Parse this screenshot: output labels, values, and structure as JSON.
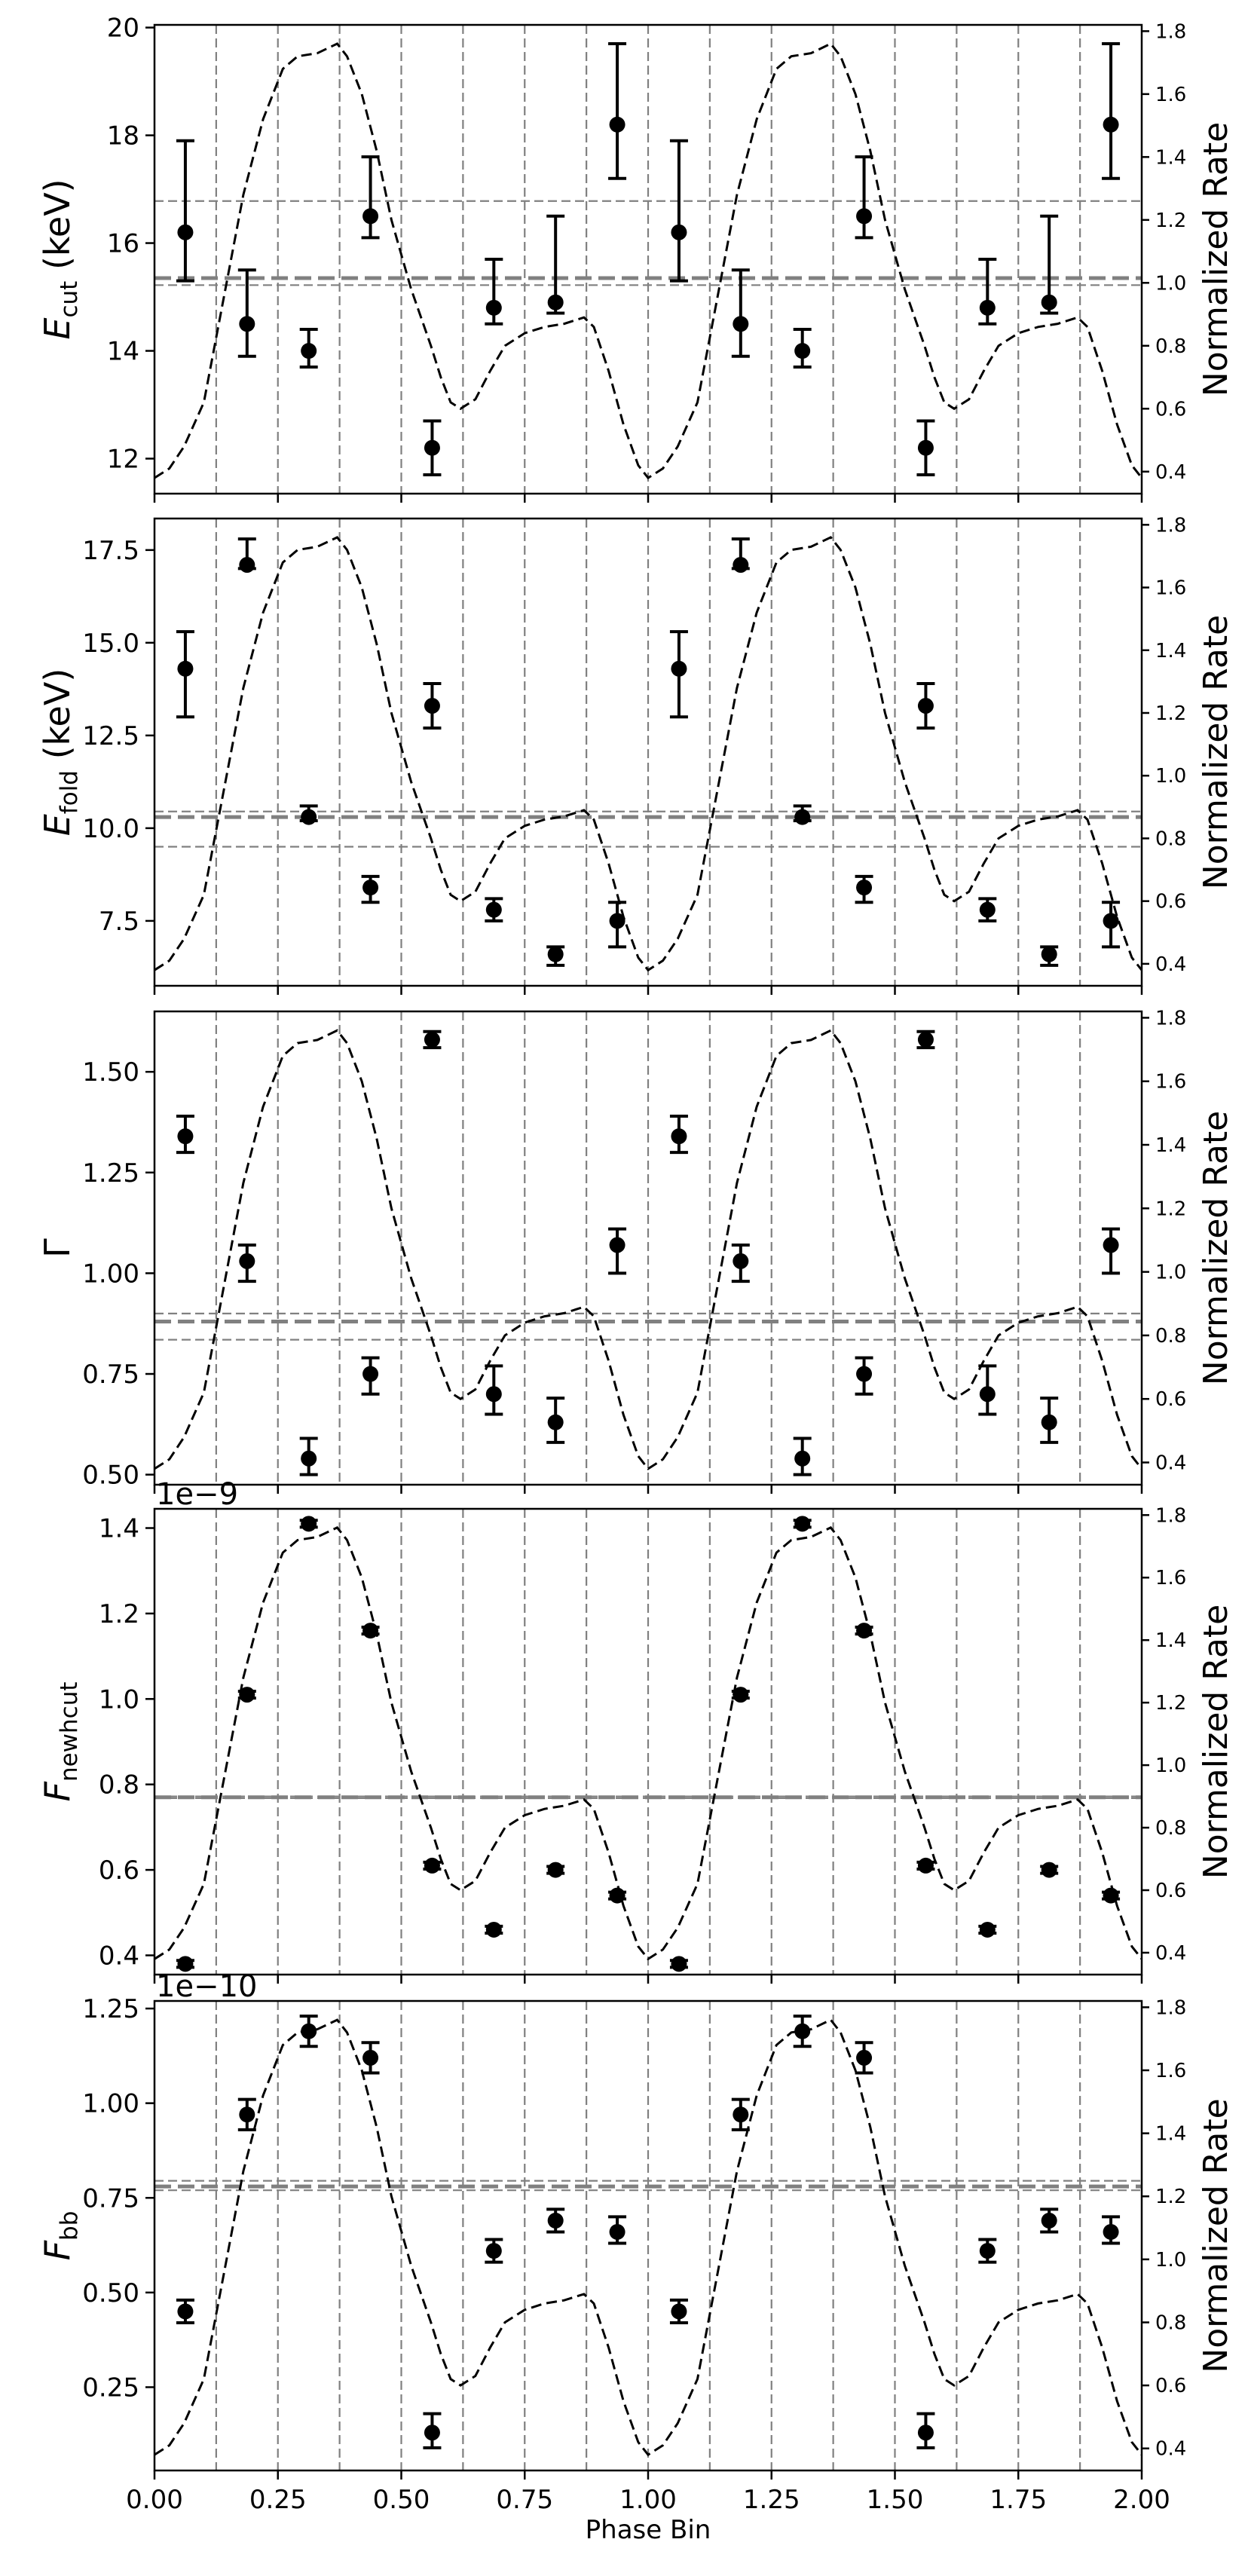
{
  "chart_data": {
    "type": "scatter",
    "xlabel": "Phase Bin",
    "xlim": [
      0,
      2
    ],
    "x_ticks": [
      "0.00",
      "0.25",
      "0.50",
      "0.75",
      "1.00",
      "1.25",
      "1.50",
      "1.75",
      "2.00"
    ],
    "right_ylabel": "Normalized Rate",
    "right_ylim": [
      0.33,
      1.82
    ],
    "right_ticks": [
      "0.4",
      "0.6",
      "0.8",
      "1.0",
      "1.2",
      "1.4",
      "1.6",
      "1.8"
    ],
    "phase_bins": [
      0.0625,
      0.1875,
      0.3125,
      0.4375,
      0.5625,
      0.6875,
      0.8125,
      0.9375,
      1.0625,
      1.1875,
      1.3125,
      1.4375,
      1.5625,
      1.6875,
      1.8125,
      1.9375
    ],
    "vertical_lines": [
      0.125,
      0.25,
      0.375,
      0.5,
      0.625,
      0.75,
      0.875,
      1.0,
      1.125,
      1.25,
      1.375,
      1.5,
      1.625,
      1.75,
      1.875
    ],
    "pulse_profile": {
      "x": [
        0.0,
        0.03,
        0.06,
        0.1,
        0.14,
        0.18,
        0.22,
        0.26,
        0.29,
        0.33,
        0.37,
        0.39,
        0.42,
        0.45,
        0.48,
        0.52,
        0.56,
        0.58,
        0.6,
        0.62,
        0.65,
        0.68,
        0.71,
        0.75,
        0.79,
        0.83,
        0.87,
        0.89,
        0.92,
        0.95,
        0.98,
        1.0,
        1.03,
        1.06,
        1.1,
        1.14,
        1.18,
        1.22,
        1.26,
        1.29,
        1.33,
        1.37,
        1.39,
        1.42,
        1.45,
        1.48,
        1.52,
        1.56,
        1.58,
        1.6,
        1.62,
        1.65,
        1.68,
        1.71,
        1.75,
        1.79,
        1.83,
        1.87,
        1.89,
        1.92,
        1.95,
        1.98,
        2.0
      ],
      "y": [
        0.38,
        0.41,
        0.48,
        0.62,
        0.95,
        1.28,
        1.52,
        1.68,
        1.72,
        1.73,
        1.76,
        1.72,
        1.6,
        1.42,
        1.2,
        0.98,
        0.8,
        0.7,
        0.62,
        0.6,
        0.63,
        0.72,
        0.8,
        0.84,
        0.86,
        0.87,
        0.89,
        0.86,
        0.72,
        0.55,
        0.42,
        0.38,
        0.41,
        0.48,
        0.62,
        0.95,
        1.28,
        1.52,
        1.68,
        1.72,
        1.73,
        1.76,
        1.72,
        1.6,
        1.42,
        1.2,
        0.98,
        0.8,
        0.7,
        0.62,
        0.6,
        0.63,
        0.72,
        0.8,
        0.84,
        0.86,
        0.87,
        0.89,
        0.86,
        0.72,
        0.55,
        0.42,
        0.38
      ]
    },
    "panels": [
      {
        "id": "ecut",
        "ylabel_main": "E",
        "ylabel_sub": "cut",
        "ylabel_unit": " (keV)",
        "ylim": [
          11.35,
          20.05
        ],
        "ticks": [
          12,
          14,
          16,
          18,
          20
        ],
        "tick_labels": [
          "12",
          "14",
          "16",
          "18",
          "20"
        ],
        "offset_text": "",
        "values": [
          16.2,
          14.5,
          14.0,
          16.5,
          12.2,
          14.8,
          14.9,
          18.2,
          16.2,
          14.5,
          14.0,
          16.5,
          12.2,
          14.8,
          14.9,
          18.2
        ],
        "err_up": [
          1.7,
          1.0,
          0.4,
          1.1,
          0.5,
          0.9,
          1.6,
          1.5,
          1.7,
          1.0,
          0.4,
          1.1,
          0.5,
          0.9,
          1.6,
          1.5
        ],
        "err_down": [
          0.9,
          0.6,
          0.3,
          0.4,
          0.5,
          0.3,
          0.2,
          1.0,
          0.9,
          0.6,
          0.3,
          0.4,
          0.5,
          0.3,
          0.2,
          1.0
        ],
        "mean": 15.35,
        "band": [
          15.22,
          16.78
        ]
      },
      {
        "id": "efold",
        "ylabel_main": "E",
        "ylabel_sub": "fold",
        "ylabel_unit": " (keV)",
        "ylim": [
          5.75,
          18.35
        ],
        "ticks": [
          7.5,
          10.0,
          12.5,
          15.0,
          17.5
        ],
        "tick_labels": [
          "7.5",
          "10.0",
          "12.5",
          "15.0",
          "17.5"
        ],
        "offset_text": "",
        "values": [
          14.3,
          17.1,
          10.3,
          8.4,
          13.3,
          7.8,
          6.6,
          7.5,
          14.3,
          17.1,
          10.3,
          8.4,
          13.3,
          7.8,
          6.6,
          7.5
        ],
        "err_up": [
          1.0,
          0.7,
          0.3,
          0.3,
          0.6,
          0.3,
          0.2,
          0.5,
          1.0,
          0.7,
          0.3,
          0.3,
          0.6,
          0.3,
          0.2,
          0.5
        ],
        "err_down": [
          1.3,
          0.1,
          0.1,
          0.4,
          0.6,
          0.3,
          0.3,
          0.7,
          1.3,
          0.1,
          0.1,
          0.4,
          0.6,
          0.3,
          0.3,
          0.7
        ],
        "mean": 10.3,
        "band": [
          9.5,
          10.45
        ]
      },
      {
        "id": "gamma",
        "ylabel_main": "Γ",
        "ylabel_sub": "",
        "ylabel_unit": "",
        "ylim": [
          0.475,
          1.65
        ],
        "ticks": [
          0.5,
          0.75,
          1.0,
          1.25,
          1.5
        ],
        "tick_labels": [
          "0.50",
          "0.75",
          "1.00",
          "1.25",
          "1.50"
        ],
        "offset_text": "",
        "values": [
          1.34,
          1.03,
          0.54,
          0.75,
          1.58,
          0.7,
          0.63,
          1.07,
          1.34,
          1.03,
          0.54,
          0.75,
          1.58,
          0.7,
          0.63,
          1.07
        ],
        "err_up": [
          0.05,
          0.04,
          0.05,
          0.04,
          0.02,
          0.07,
          0.06,
          0.04,
          0.05,
          0.04,
          0.05,
          0.04,
          0.02,
          0.07,
          0.06,
          0.04
        ],
        "err_down": [
          0.04,
          0.05,
          0.04,
          0.05,
          0.02,
          0.05,
          0.05,
          0.07,
          0.04,
          0.05,
          0.04,
          0.05,
          0.02,
          0.05,
          0.05,
          0.07
        ],
        "mean": 0.88,
        "band": [
          0.835,
          0.9
        ]
      },
      {
        "id": "fnewhcut",
        "ylabel_main": "F",
        "ylabel_sub": "newhcut",
        "ylabel_unit": "",
        "ylim": [
          0.355,
          1.445
        ],
        "ticks": [
          0.4,
          0.6,
          0.8,
          1.0,
          1.2,
          1.4
        ],
        "tick_labels": [
          "0.4",
          "0.6",
          "0.8",
          "1.0",
          "1.2",
          "1.4"
        ],
        "offset_text": "1e−9",
        "values": [
          0.38,
          1.01,
          1.41,
          1.16,
          0.61,
          0.46,
          0.6,
          0.54,
          0.38,
          1.01,
          1.41,
          1.16,
          0.61,
          0.46,
          0.6,
          0.54
        ],
        "err_up": [
          0.008,
          0.008,
          0.008,
          0.008,
          0.008,
          0.008,
          0.008,
          0.008,
          0.008,
          0.008,
          0.008,
          0.008,
          0.008,
          0.008,
          0.008,
          0.008
        ],
        "err_down": [
          0.008,
          0.008,
          0.008,
          0.008,
          0.008,
          0.008,
          0.008,
          0.008,
          0.008,
          0.008,
          0.008,
          0.008,
          0.008,
          0.008,
          0.008,
          0.008
        ],
        "mean": 0.77,
        "band": [
          0.768,
          0.772
        ]
      },
      {
        "id": "fbb",
        "ylabel_main": "F",
        "ylabel_sub": "bb",
        "ylabel_unit": "",
        "ylim": [
          0.03,
          1.27
        ],
        "ticks": [
          0.25,
          0.5,
          0.75,
          1.0,
          1.25
        ],
        "tick_labels": [
          "0.25",
          "0.50",
          "0.75",
          "1.00",
          "1.25"
        ],
        "offset_text": "1e−10",
        "values": [
          0.45,
          0.97,
          1.19,
          1.12,
          0.13,
          0.61,
          0.69,
          0.66,
          0.45,
          0.97,
          1.19,
          1.12,
          0.13,
          0.61,
          0.69,
          0.66
        ],
        "err_up": [
          0.03,
          0.04,
          0.04,
          0.04,
          0.05,
          0.03,
          0.03,
          0.04,
          0.03,
          0.04,
          0.04,
          0.04,
          0.05,
          0.03,
          0.03,
          0.04
        ],
        "err_down": [
          0.03,
          0.04,
          0.04,
          0.04,
          0.04,
          0.03,
          0.03,
          0.03,
          0.03,
          0.04,
          0.04,
          0.04,
          0.04,
          0.03,
          0.03,
          0.03
        ],
        "mean": 0.78,
        "band": [
          0.77,
          0.795
        ]
      }
    ],
    "colors": {
      "points": "#000000",
      "profile": "#000000",
      "grid_lines": "#808080",
      "mean_line": "#808080"
    }
  }
}
